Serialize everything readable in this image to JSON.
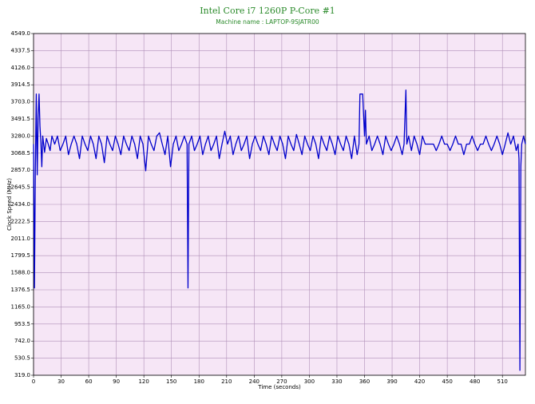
{
  "chart_data": {
    "type": "line",
    "title": "Intel Core i7  1260P P-Core #1",
    "subtitle": "Machine name : LAPTOP-9SJATR00",
    "x_label": "Time (seconds)",
    "y_label": "Clock Speed (MHz)",
    "xlim": [
      0,
      535
    ],
    "xticks": [
      0,
      30,
      60,
      90,
      120,
      150,
      180,
      210,
      240,
      270,
      300,
      330,
      360,
      390,
      420,
      450,
      480,
      510
    ],
    "ylim": [
      319,
      4549
    ],
    "yticks": [
      {
        "value": 319,
        "label": "319.0"
      },
      {
        "value": 530.5,
        "label": "530.5"
      },
      {
        "value": 742,
        "label": "742.0"
      },
      {
        "value": 953.5,
        "label": "953.5"
      },
      {
        "value": 1165,
        "label": "1165.0"
      },
      {
        "value": 1376.5,
        "label": "1376.5"
      },
      {
        "value": 1588,
        "label": "1588.0"
      },
      {
        "value": 1799.5,
        "label": "1799.5"
      },
      {
        "value": 2011,
        "label": "2011.0"
      },
      {
        "value": 2222.5,
        "label": "2222.5"
      },
      {
        "value": 2434,
        "label": "2434.0"
      },
      {
        "value": 2645.5,
        "label": "2645.5"
      },
      {
        "value": 2857,
        "label": "2857.0"
      },
      {
        "value": 3068.5,
        "label": "3068.5"
      },
      {
        "value": 3280,
        "label": "3280.0"
      },
      {
        "value": 3491.5,
        "label": "3491.5"
      },
      {
        "value": 3703,
        "label": "3703.0"
      },
      {
        "value": 3914.5,
        "label": "3914.5"
      },
      {
        "value": 4126,
        "label": "4126.0"
      },
      {
        "value": 4337.5,
        "label": "4337.5"
      },
      {
        "value": 4549,
        "label": "4549.0"
      }
    ],
    "grid": true,
    "x": [
      0,
      1,
      2,
      3,
      4,
      5,
      6,
      7,
      8,
      9,
      10,
      12,
      14,
      16,
      18,
      20,
      23,
      26,
      29,
      32,
      35,
      38,
      41,
      44,
      47,
      50,
      53,
      56,
      59,
      62,
      65,
      68,
      71,
      74,
      77,
      80,
      83,
      86,
      89,
      92,
      95,
      98,
      101,
      104,
      107,
      110,
      113,
      116,
      119,
      122,
      125,
      128,
      131,
      134,
      137,
      140,
      143,
      146,
      149,
      152,
      155,
      158,
      161,
      164,
      167,
      168,
      169,
      172,
      175,
      178,
      181,
      184,
      187,
      190,
      193,
      196,
      199,
      202,
      205,
      208,
      211,
      214,
      217,
      220,
      223,
      226,
      229,
      232,
      235,
      238,
      241,
      244,
      247,
      250,
      253,
      256,
      259,
      262,
      265,
      268,
      271,
      274,
      277,
      280,
      283,
      286,
      289,
      292,
      295,
      298,
      301,
      304,
      307,
      310,
      313,
      316,
      319,
      322,
      325,
      328,
      331,
      334,
      337,
      340,
      343,
      346,
      349,
      352,
      354,
      355,
      358,
      360,
      361,
      362,
      365,
      368,
      371,
      374,
      377,
      380,
      383,
      386,
      389,
      392,
      395,
      398,
      401,
      403,
      405,
      406,
      408,
      411,
      414,
      417,
      420,
      423,
      426,
      429,
      432,
      435,
      438,
      441,
      444,
      447,
      450,
      453,
      456,
      459,
      462,
      465,
      468,
      471,
      474,
      477,
      480,
      483,
      486,
      489,
      492,
      495,
      498,
      501,
      504,
      507,
      510,
      513,
      516,
      519,
      522,
      525,
      527,
      528,
      529,
      530,
      531,
      533,
      535
    ],
    "series": [
      {
        "name": "P-Core #1",
        "color": "#0000cc",
        "values": [
          3180,
          1400,
          2900,
          3800,
          2800,
          3500,
          3800,
          3400,
          3200,
          2900,
          3280,
          3080,
          3250,
          3180,
          3100,
          3280,
          3180,
          3280,
          3100,
          3180,
          3280,
          3050,
          3180,
          3280,
          3180,
          3000,
          3280,
          3180,
          3100,
          3280,
          3180,
          3000,
          3280,
          3180,
          2950,
          3280,
          3180,
          3100,
          3280,
          3180,
          3050,
          3280,
          3180,
          3100,
          3280,
          3180,
          3000,
          3280,
          3180,
          2850,
          3280,
          3180,
          3100,
          3280,
          3320,
          3180,
          3050,
          3280,
          2900,
          3180,
          3280,
          3100,
          3180,
          3280,
          3180,
          1400,
          3180,
          3280,
          3100,
          3180,
          3280,
          3050,
          3180,
          3280,
          3100,
          3180,
          3280,
          3000,
          3180,
          3340,
          3180,
          3280,
          3050,
          3180,
          3280,
          3100,
          3180,
          3280,
          3000,
          3180,
          3280,
          3180,
          3100,
          3280,
          3180,
          3050,
          3280,
          3180,
          3100,
          3280,
          3180,
          3000,
          3280,
          3180,
          3100,
          3300,
          3180,
          3050,
          3280,
          3180,
          3100,
          3280,
          3180,
          3000,
          3280,
          3180,
          3100,
          3280,
          3180,
          3050,
          3280,
          3180,
          3100,
          3280,
          3180,
          3000,
          3280,
          3050,
          3180,
          3800,
          3800,
          3280,
          3600,
          3180,
          3280,
          3100,
          3180,
          3280,
          3180,
          3050,
          3280,
          3180,
          3100,
          3180,
          3280,
          3180,
          3050,
          3180,
          3850,
          3180,
          3280,
          3100,
          3280,
          3180,
          3050,
          3280,
          3180,
          3180,
          3180,
          3180,
          3100,
          3180,
          3280,
          3180,
          3180,
          3100,
          3180,
          3280,
          3180,
          3180,
          3050,
          3180,
          3180,
          3280,
          3180,
          3100,
          3180,
          3180,
          3280,
          3180,
          3100,
          3180,
          3280,
          3180,
          3050,
          3180,
          3320,
          3180,
          3280,
          3100,
          3180,
          3000,
          380,
          2900,
          3180,
          3280,
          3180
        ]
      }
    ]
  }
}
